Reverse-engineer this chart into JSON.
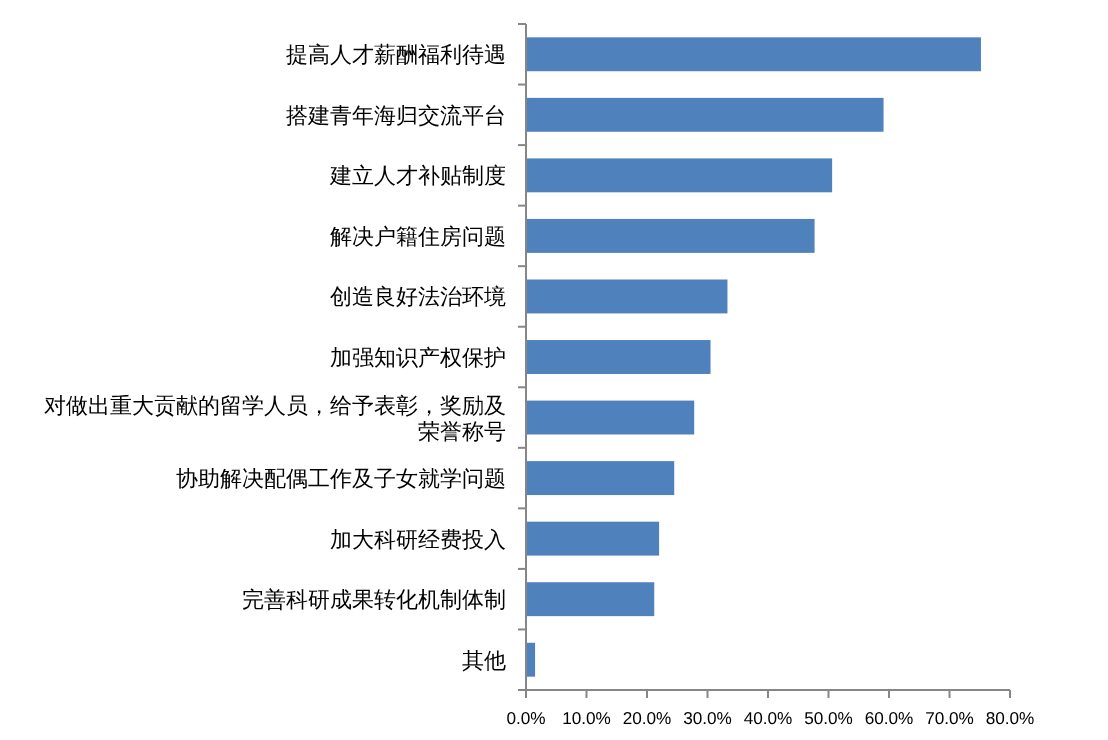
{
  "chart_data": {
    "type": "bar",
    "orientation": "horizontal",
    "categories": [
      "提高人才薪酬福利待遇",
      "搭建青年海归交流平台",
      "建立人才补贴制度",
      "解决户籍住房问题",
      "创造良好法治环境",
      "加强知识产权保护",
      "对做出重大贡献的留学人员，给予表彰，奖励及荣誉称号",
      "协助解决配偶工作及子女就学问题",
      "加大科研经费投入",
      "完善科研成果转化机制体制",
      "其他"
    ],
    "values": [
      75.2,
      59.1,
      50.6,
      47.7,
      33.3,
      30.5,
      27.8,
      24.5,
      22.0,
      21.2,
      1.5
    ],
    "color": "#4f81bd",
    "xlim": [
      0,
      80
    ],
    "xticks": [
      {
        "value": 0,
        "label": "0.0%"
      },
      {
        "value": 10,
        "label": "10.0%"
      },
      {
        "value": 20,
        "label": "20.0%"
      },
      {
        "value": 30,
        "label": "30.0%"
      },
      {
        "value": 40,
        "label": "40.0%"
      },
      {
        "value": 50,
        "label": "50.0%"
      },
      {
        "value": 60,
        "label": "60.0%"
      },
      {
        "value": 70,
        "label": "70.0%"
      },
      {
        "value": 80,
        "label": "80.0%"
      }
    ],
    "grid": false
  }
}
